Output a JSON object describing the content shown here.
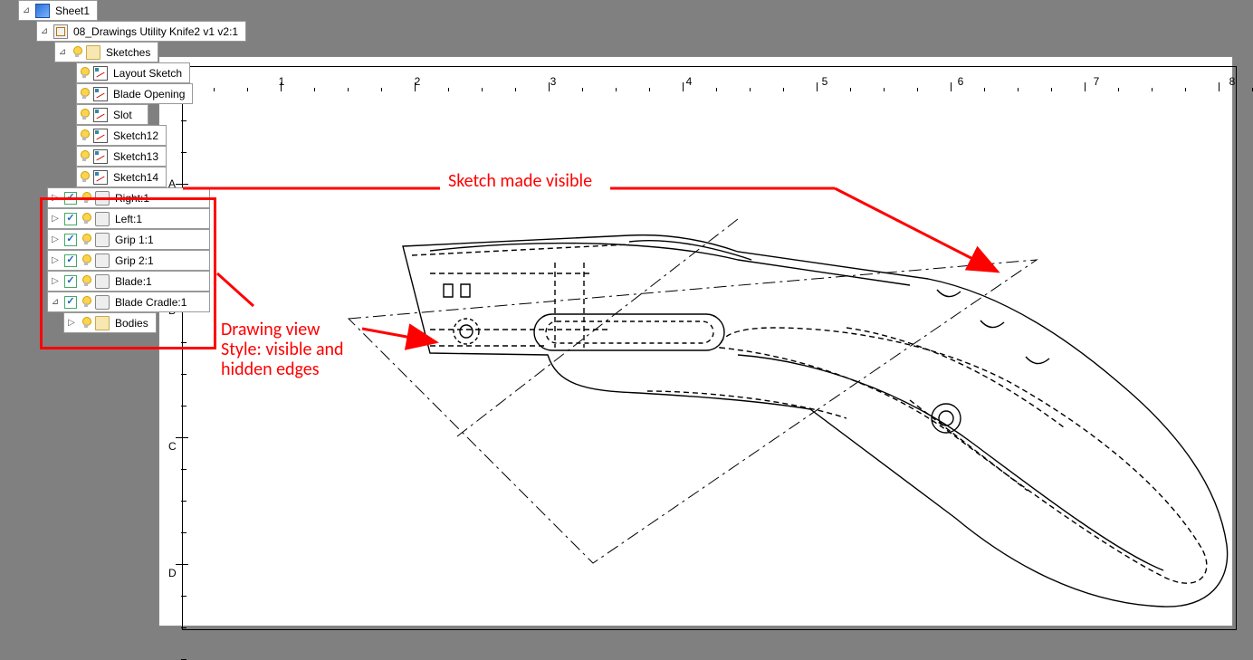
{
  "tree": {
    "sheet": "Sheet1",
    "doc": "08_Drawings Utility Knife2 v1 v2:1",
    "sketches_folder": "Sketches",
    "sketches": [
      {
        "label": "Layout Sketch",
        "on": true
      },
      {
        "label": "Blade Opening",
        "on": true
      },
      {
        "label": "Slot",
        "on": true
      },
      {
        "label": "Sketch12",
        "on": true
      },
      {
        "label": "Sketch13",
        "on": true
      },
      {
        "label": "Sketch14",
        "on": true
      }
    ],
    "components": [
      {
        "label": "Right:1",
        "arrow": "▷"
      },
      {
        "label": "Left:1",
        "arrow": "▷"
      },
      {
        "label": "Grip 1:1",
        "arrow": "▷"
      },
      {
        "label": "Grip 2:1",
        "arrow": "▷"
      },
      {
        "label": "Blade:1",
        "arrow": "▷"
      },
      {
        "label": "Blade Cradle:1",
        "arrow": "⊿"
      }
    ],
    "bodies_folder": "Bodies"
  },
  "ruler": {
    "numbers": [
      "1",
      "2",
      "3",
      "4",
      "5",
      "6",
      "7",
      "8"
    ],
    "num_x": [
      110,
      260,
      410,
      560,
      710,
      860,
      1010,
      1160
    ],
    "letters": [
      "A",
      "B",
      "C",
      "D"
    ],
    "letter_y": [
      100,
      240,
      390,
      530
    ]
  },
  "annotations": {
    "a1": "Sketch made visible",
    "a2_l1": "Drawing view",
    "a2_l2": "Style: visible and",
    "a2_l3": "hidden edges"
  },
  "colors": {
    "red": "#ff0000",
    "paper": "#ffffff",
    "bg": "#808080"
  }
}
